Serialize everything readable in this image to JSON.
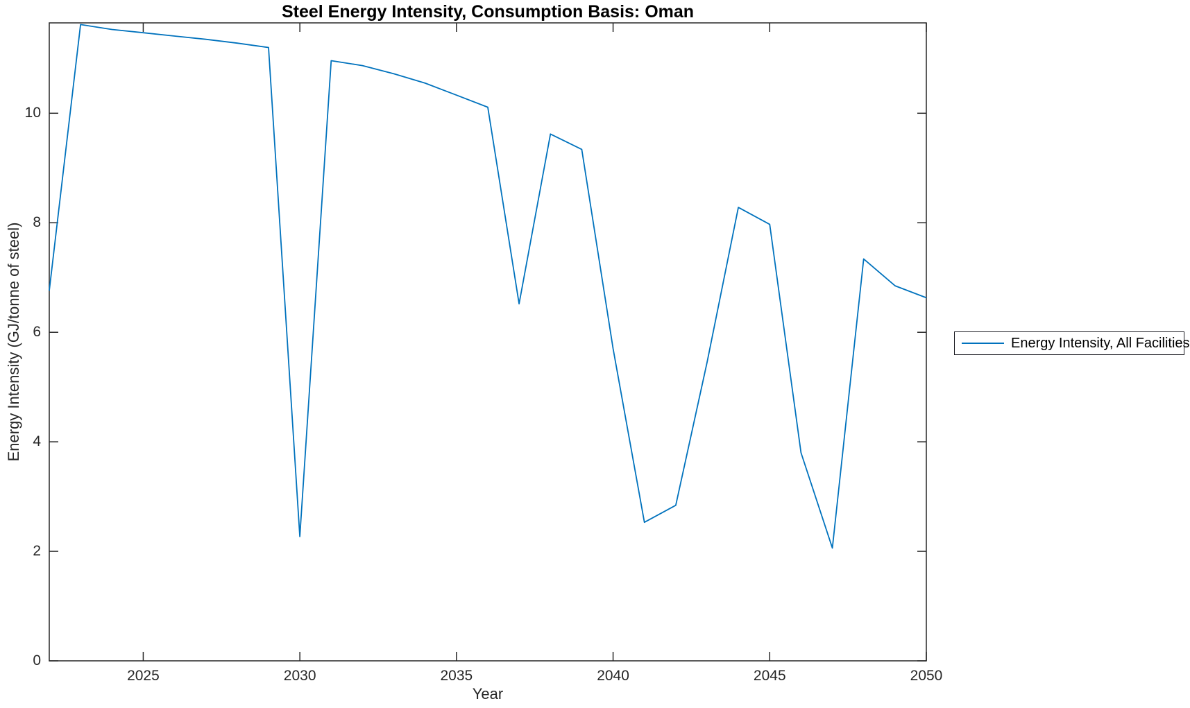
{
  "chart_data": {
    "type": "line",
    "title": "Steel Energy Intensity, Consumption Basis: Oman",
    "xlabel": "Year",
    "ylabel": "Energy Intensity (GJ/tonne of steel)",
    "x": [
      2022,
      2023,
      2024,
      2025,
      2026,
      2027,
      2028,
      2029,
      2030,
      2031,
      2032,
      2033,
      2034,
      2035,
      2036,
      2037,
      2038,
      2039,
      2040,
      2041,
      2042,
      2043,
      2044,
      2045,
      2046,
      2047,
      2048,
      2049,
      2050
    ],
    "series": [
      {
        "name": "Energy Intensity, All Facilities",
        "color": "#0072BD",
        "values": [
          6.76,
          11.62,
          11.53,
          11.47,
          11.41,
          11.35,
          11.28,
          11.2,
          2.27,
          10.96,
          10.87,
          10.72,
          10.55,
          10.33,
          10.11,
          6.52,
          9.62,
          9.34,
          5.7,
          2.53,
          2.84,
          5.45,
          8.28,
          7.97,
          3.8,
          2.06,
          7.34,
          6.85,
          6.63
        ]
      }
    ],
    "xlim": [
      2022,
      2050
    ],
    "ylim": [
      0,
      11.65
    ],
    "xticks": [
      2025,
      2030,
      2035,
      2040,
      2045,
      2050
    ],
    "yticks": [
      0,
      2,
      4,
      6,
      8,
      10
    ],
    "grid": false,
    "legend_position": "right-outside",
    "axis_box": true
  },
  "colors": {
    "line": "#0072BD",
    "axis": "#262626",
    "tick_label": "#262626",
    "title": "#000000",
    "background": "#ffffff"
  }
}
